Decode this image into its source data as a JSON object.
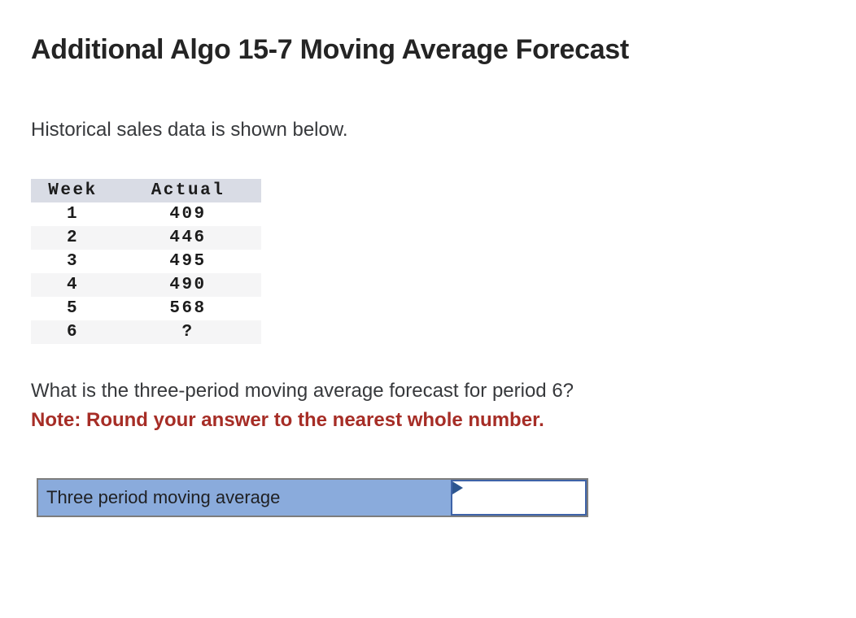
{
  "page": {
    "title": "Additional Algo 15-7 Moving Average Forecast",
    "intro": "Historical sales data is shown below.",
    "question": "What is the three-period moving average forecast for period 6?",
    "note": "Note: Round your answer to the nearest whole number."
  },
  "table": {
    "headers": [
      "Week",
      "Actual"
    ],
    "rows": [
      {
        "week": "1",
        "actual": "409"
      },
      {
        "week": "2",
        "actual": "446"
      },
      {
        "week": "3",
        "actual": "495"
      },
      {
        "week": "4",
        "actual": "490"
      },
      {
        "week": "5",
        "actual": "568"
      },
      {
        "week": "6",
        "actual": "?"
      }
    ]
  },
  "answer": {
    "label": "Three period moving average",
    "input_value": ""
  },
  "colors": {
    "note_red": "#a62d26",
    "answer_label_blue": "#8aabdc",
    "input_border_blue": "#3e63a8",
    "flag_navy": "#2d5690",
    "row_border_gray": "#7d7d7d",
    "table_header_bg": "#d9dce5",
    "table_stripe_bg": "#f5f5f6"
  }
}
